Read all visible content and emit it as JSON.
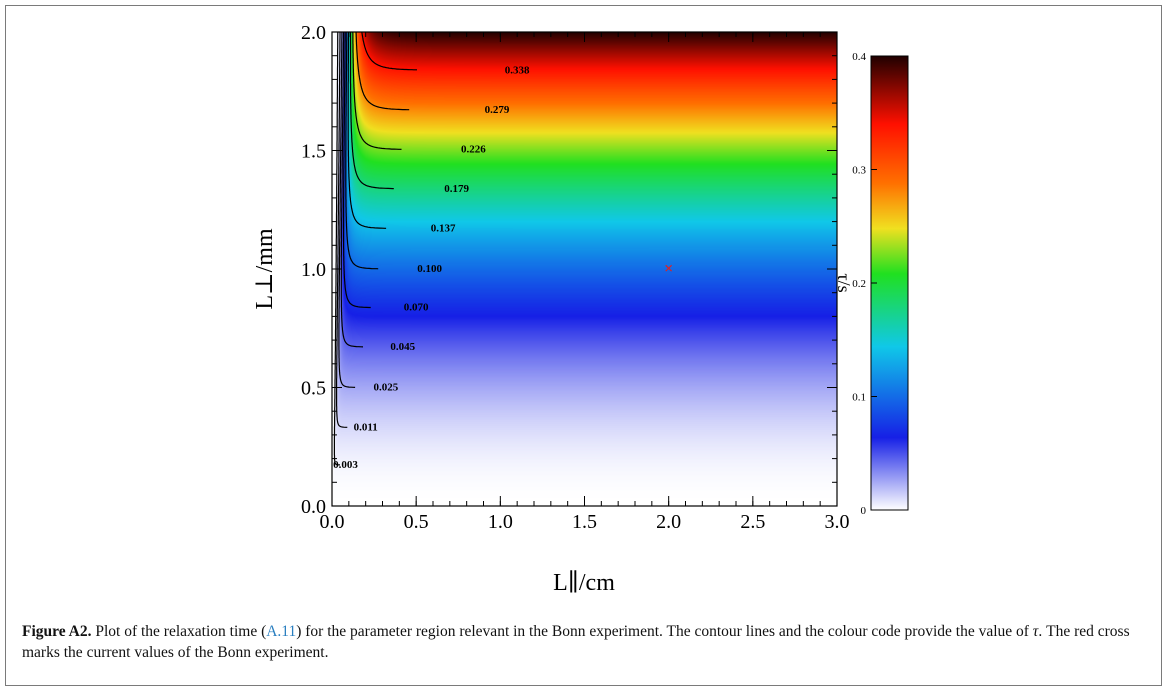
{
  "chart_data": {
    "type": "heatmap",
    "subtype": "filled contour plot",
    "xlabel": "L∥/cm",
    "ylabel": "L⊥/mm",
    "xlim": [
      0.0,
      3.0
    ],
    "ylim": [
      0.0,
      2.0
    ],
    "x_ticks": [
      "0.0",
      "0.5",
      "1.0",
      "1.5",
      "2.0",
      "2.5",
      "3.0"
    ],
    "y_ticks": [
      "0.0",
      "0.5",
      "1.0",
      "1.5",
      "2.0"
    ],
    "colorbar": {
      "label": "τ/s",
      "range": [
        0,
        0.4
      ],
      "ticks": [
        "0",
        "0.1",
        "0.2",
        "0.3",
        "0.4"
      ],
      "colormap": [
        "#ffffff",
        "#1620e6",
        "#10c8e8",
        "#20e020",
        "#f0e020",
        "#ff7000",
        "#ff1000",
        "#200000"
      ]
    },
    "contour_levels": [
      {
        "label": "0.003",
        "value": 0.003
      },
      {
        "label": "0.011",
        "value": 0.011
      },
      {
        "label": "0.025",
        "value": 0.025
      },
      {
        "label": "0.045",
        "value": 0.045
      },
      {
        "label": "0.070",
        "value": 0.07
      },
      {
        "label": "0.100",
        "value": 0.1
      },
      {
        "label": "0.137",
        "value": 0.137
      },
      {
        "label": "0.179",
        "value": 0.179
      },
      {
        "label": "0.226",
        "value": 0.226
      },
      {
        "label": "0.279",
        "value": 0.279
      },
      {
        "label": "0.338",
        "value": 0.338
      }
    ],
    "marker": {
      "symbol": "×",
      "x": 2.0,
      "y": 1.0,
      "color": "#e02020"
    }
  },
  "caption": {
    "label": "Figure A2.",
    "text_before_ref": " Plot of the relaxation time (",
    "eq_ref": "A.11",
    "text_after_ref": ") for the parameter region relevant in the Bonn experiment. The contour lines and the colour code provide the value of ",
    "tau": "τ",
    "text_end": ". The red cross marks the current values of the Bonn experiment."
  }
}
